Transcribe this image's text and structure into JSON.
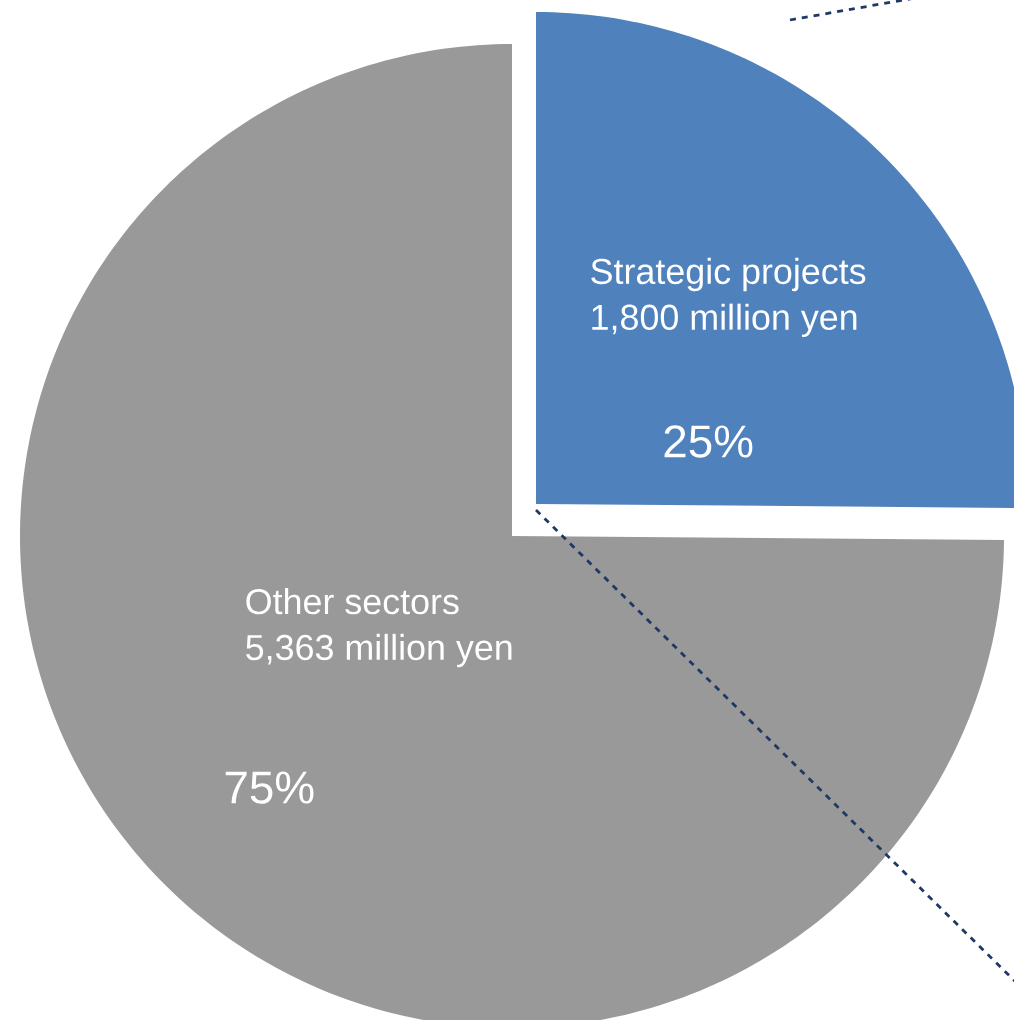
{
  "chart_data": {
    "type": "pie",
    "categories": [
      "Strategic projects",
      "Other sectors"
    ],
    "values": [
      1800,
      5363
    ],
    "value_labels": [
      "1,800 million yen",
      "5,363 million yen"
    ],
    "colors": [
      "#4f81bd",
      "#999999"
    ],
    "annotations": [
      "25%",
      "75%"
    ]
  }
}
